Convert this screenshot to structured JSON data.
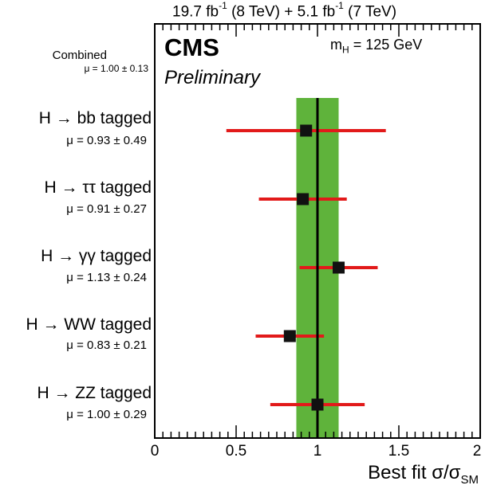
{
  "header": {
    "lumi_8tev_value": "19.7 fb",
    "lumi_8tev_exp": "-1",
    "lumi_8tev_energy": "(8 TeV)",
    "lumi_sep": "+",
    "lumi_7tev_value": "5.1 fb",
    "lumi_7tev_exp": "-1",
    "lumi_7tev_energy": "(7 TeV)"
  },
  "labels": {
    "experiment": "CMS",
    "status": "Preliminary",
    "mass_prefix": "m",
    "mass_sub": "H",
    "mass_value": "= 125 GeV",
    "combined_name": "Combined",
    "combined_mu": "μ = 1.00 ± 0.13"
  },
  "categories": [
    {
      "name": "H → bb tagged",
      "mu_text": "μ = 0.93 ± 0.49"
    },
    {
      "name": "H → ττ tagged",
      "mu_text": "μ = 0.91 ± 0.27"
    },
    {
      "name": "H → γγ tagged",
      "mu_text": "μ = 1.13 ± 0.24"
    },
    {
      "name": "H → WW tagged",
      "mu_text": "μ = 0.83 ± 0.21"
    },
    {
      "name": "H → ZZ tagged",
      "mu_text": "μ = 1.00 ± 0.29"
    }
  ],
  "xaxis": {
    "label_main": "Best fit σ/σ",
    "label_sub": "SM",
    "ticks": [
      "0",
      "0.5",
      "1",
      "1.5",
      "2"
    ]
  },
  "chart_data": {
    "type": "scatter",
    "orientation": "horizontal-errorbars",
    "categories": [
      "H → bb tagged",
      "H → ττ tagged",
      "H → γγ tagged",
      "H → WW tagged",
      "H → ZZ tagged"
    ],
    "values": [
      0.93,
      0.91,
      1.13,
      0.83,
      1.0
    ],
    "errors": [
      0.49,
      0.27,
      0.24,
      0.21,
      0.29
    ],
    "combined": {
      "value": 1.0,
      "error": 0.13
    },
    "xlim": [
      0,
      2
    ],
    "xticks": [
      0,
      0.5,
      1,
      1.5,
      2
    ],
    "grid": false,
    "colors": {
      "band": "#5fb33b",
      "error_bar": "#e21a1a",
      "marker": "#111111",
      "line": "#000000"
    }
  }
}
